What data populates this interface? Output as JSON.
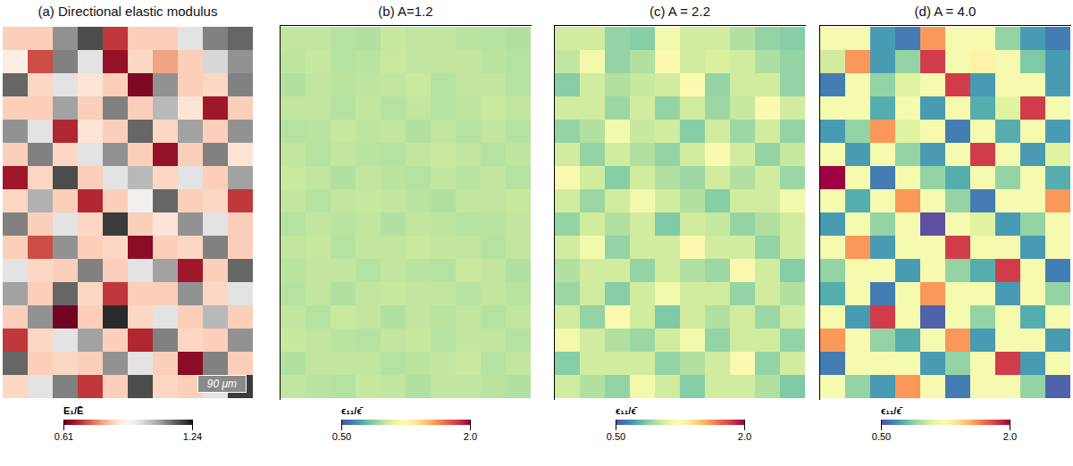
{
  "chart_data": [
    {
      "type": "heatmap",
      "title": "(a) Directional elastic modulus",
      "color": "RdGy",
      "scale_bar": "90 μm",
      "colorbar": {
        "label": "E₁/Ē",
        "range": [
          0.61,
          1.24
        ],
        "ticks": [
          0.61,
          1.24
        ]
      },
      "cells": [
        [
          0.85,
          0.85,
          1.1,
          1.18,
          0.7,
          0.85,
          0.85,
          0.98,
          1.12,
          1.15
        ],
        [
          0.9,
          0.72,
          1.12,
          0.98,
          0.65,
          0.86,
          0.8,
          0.85,
          1.0,
          1.1
        ],
        [
          1.15,
          0.86,
          0.98,
          0.88,
          0.85,
          0.63,
          1.1,
          0.85,
          0.86,
          1.12
        ],
        [
          0.85,
          0.85,
          1.08,
          0.85,
          1.12,
          0.85,
          1.05,
          0.88,
          0.66,
          0.85
        ],
        [
          1.1,
          0.98,
          0.68,
          0.88,
          0.85,
          1.15,
          0.86,
          1.08,
          0.85,
          1.1
        ],
        [
          0.85,
          1.12,
          0.86,
          0.98,
          1.1,
          0.85,
          0.65,
          0.85,
          1.12,
          0.88
        ],
        [
          0.66,
          0.86,
          1.18,
          0.85,
          0.98,
          1.05,
          0.86,
          0.98,
          0.85,
          1.08
        ],
        [
          0.86,
          1.06,
          0.85,
          0.68,
          0.85,
          0.95,
          1.15,
          0.85,
          0.86,
          0.7
        ],
        [
          1.12,
          0.85,
          0.98,
          0.86,
          1.2,
          0.85,
          0.88,
          1.1,
          0.98,
          0.85
        ],
        [
          0.85,
          0.72,
          1.1,
          0.85,
          0.86,
          0.64,
          0.85,
          0.86,
          1.12,
          0.85
        ],
        [
          0.98,
          0.86,
          0.85,
          1.12,
          0.85,
          0.98,
          1.08,
          0.66,
          0.85,
          1.15
        ],
        [
          1.08,
          0.85,
          1.15,
          0.86,
          0.7,
          0.85,
          0.85,
          1.1,
          0.86,
          0.98
        ],
        [
          0.85,
          1.1,
          0.62,
          0.85,
          1.22,
          0.86,
          0.98,
          0.85,
          1.05,
          0.85
        ],
        [
          0.7,
          0.86,
          0.98,
          1.08,
          0.85,
          0.68,
          1.12,
          0.86,
          0.85,
          1.1
        ],
        [
          1.15,
          0.85,
          0.86,
          0.85,
          1.1,
          0.98,
          0.85,
          0.64,
          1.12,
          0.85
        ],
        [
          0.86,
          0.98,
          1.12,
          0.7,
          0.85,
          1.18,
          0.86,
          0.85,
          0.98,
          1.2
        ]
      ]
    },
    {
      "type": "heatmap",
      "title": "(b) A=1.2",
      "color": "Spectral",
      "colorbar": {
        "label": "ϵ₁₁/ϵ̄",
        "range": [
          0.5,
          2.0
        ],
        "ticks": [
          {
            "value": 0.5,
            "label": "0.50"
          },
          {
            "value": 2.0,
            "label": "2.0"
          }
        ]
      },
      "cells": [
        [
          1.01,
          1.01,
          0.98,
          0.97,
          1.02,
          1.01,
          1.01,
          0.99,
          0.98,
          0.97
        ],
        [
          1.0,
          1.02,
          0.98,
          0.99,
          1.03,
          1.01,
          1.01,
          1.01,
          0.99,
          0.98
        ],
        [
          0.97,
          1.01,
          0.99,
          1.0,
          1.01,
          1.03,
          0.98,
          1.01,
          1.01,
          0.98
        ],
        [
          1.01,
          1.01,
          0.98,
          1.01,
          0.98,
          1.01,
          0.98,
          1.0,
          1.03,
          1.01
        ],
        [
          0.98,
          0.99,
          1.02,
          1.0,
          1.01,
          0.97,
          1.01,
          0.98,
          1.01,
          0.98
        ],
        [
          1.01,
          0.98,
          1.01,
          0.99,
          0.98,
          1.01,
          1.03,
          1.01,
          0.98,
          1.0
        ],
        [
          1.03,
          1.01,
          0.97,
          1.01,
          0.99,
          0.98,
          1.01,
          0.99,
          1.01,
          0.98
        ],
        [
          1.01,
          0.98,
          1.01,
          1.02,
          1.01,
          0.99,
          0.97,
          1.01,
          1.01,
          1.02
        ],
        [
          0.98,
          1.01,
          0.99,
          1.01,
          0.97,
          1.01,
          1.0,
          0.98,
          0.99,
          1.01
        ],
        [
          1.01,
          1.02,
          0.98,
          1.01,
          1.01,
          1.03,
          1.01,
          1.01,
          0.98,
          1.01
        ],
        [
          0.99,
          1.01,
          1.01,
          0.98,
          1.01,
          0.99,
          0.98,
          1.03,
          1.01,
          0.97
        ],
        [
          0.98,
          1.01,
          0.97,
          1.01,
          1.02,
          1.01,
          1.01,
          0.98,
          1.01,
          0.99
        ],
        [
          1.01,
          0.98,
          1.03,
          1.01,
          0.97,
          1.01,
          0.99,
          1.01,
          0.98,
          1.01
        ],
        [
          1.02,
          1.01,
          0.99,
          0.98,
          1.01,
          1.02,
          0.98,
          1.01,
          1.01,
          0.98
        ],
        [
          0.97,
          1.01,
          1.01,
          1.01,
          0.98,
          0.99,
          1.01,
          1.03,
          0.98,
          1.01
        ],
        [
          1.01,
          0.99,
          0.98,
          1.02,
          1.01,
          0.97,
          1.01,
          1.01,
          0.99,
          0.97
        ]
      ]
    },
    {
      "type": "heatmap",
      "title": "(c) A = 2.2",
      "color": "Spectral",
      "colorbar": {
        "label": "ϵ₁₁/ϵ̄",
        "range": [
          0.5,
          2.0
        ],
        "ticks": [
          {
            "value": 0.5,
            "label": "0.50"
          },
          {
            "value": 2.0,
            "label": "2.0"
          }
        ]
      },
      "cells": [
        [
          1.05,
          1.05,
          0.9,
          0.87,
          1.18,
          1.05,
          1.05,
          0.97,
          0.9,
          0.87
        ],
        [
          1.01,
          1.18,
          0.9,
          0.97,
          1.25,
          1.05,
          1.08,
          1.05,
          0.96,
          0.9
        ],
        [
          0.87,
          1.05,
          0.97,
          1.02,
          1.05,
          1.25,
          0.9,
          1.05,
          1.05,
          0.9
        ],
        [
          1.05,
          1.05,
          0.92,
          1.05,
          0.9,
          1.05,
          0.92,
          1.02,
          1.25,
          1.05
        ],
        [
          0.9,
          0.97,
          1.18,
          1.02,
          1.05,
          0.87,
          1.05,
          0.92,
          1.05,
          0.9
        ],
        [
          1.05,
          0.9,
          1.05,
          0.97,
          0.9,
          1.05,
          1.25,
          1.05,
          0.9,
          1.02
        ],
        [
          1.25,
          1.05,
          0.87,
          1.05,
          0.97,
          0.92,
          1.05,
          0.97,
          1.05,
          0.92
        ],
        [
          1.05,
          0.92,
          1.05,
          1.18,
          1.05,
          0.97,
          0.87,
          1.05,
          1.05,
          1.18
        ],
        [
          0.9,
          1.05,
          0.97,
          1.05,
          0.85,
          1.05,
          1.02,
          0.9,
          0.97,
          1.05
        ],
        [
          1.05,
          1.18,
          0.9,
          1.05,
          1.05,
          1.25,
          1.05,
          1.05,
          0.9,
          1.05
        ],
        [
          0.97,
          1.05,
          1.05,
          0.9,
          1.05,
          0.97,
          0.92,
          1.25,
          1.05,
          0.87
        ],
        [
          0.92,
          1.05,
          0.87,
          1.05,
          1.18,
          1.05,
          1.05,
          0.9,
          1.05,
          0.97
        ],
        [
          1.05,
          0.9,
          1.25,
          1.05,
          0.85,
          1.05,
          0.97,
          1.05,
          0.92,
          1.05
        ],
        [
          1.18,
          1.05,
          0.97,
          0.92,
          1.05,
          1.18,
          0.9,
          1.05,
          1.05,
          0.9
        ],
        [
          0.87,
          1.05,
          1.05,
          1.05,
          0.9,
          0.97,
          1.05,
          1.25,
          0.9,
          1.05
        ],
        [
          1.05,
          0.97,
          0.9,
          1.18,
          1.05,
          0.87,
          1.05,
          1.05,
          0.97,
          0.85
        ]
      ]
    },
    {
      "type": "heatmap",
      "title": "(d) A = 4.0",
      "color": "Spectral",
      "colorbar": {
        "label": "ϵ₁₁/ϵ̄",
        "range": [
          0.5,
          2.0
        ],
        "ticks": [
          {
            "value": 0.5,
            "label": "0.50"
          },
          {
            "value": 2.0,
            "label": "2.0"
          }
        ]
      },
      "cells": [
        [
          1.2,
          1.2,
          0.7,
          0.62,
          1.6,
          1.2,
          1.2,
          0.9,
          0.7,
          0.62
        ],
        [
          1.05,
          1.6,
          0.7,
          0.9,
          1.85,
          1.2,
          1.3,
          1.2,
          0.85,
          0.7
        ],
        [
          0.62,
          1.2,
          0.9,
          1.1,
          1.2,
          1.85,
          0.7,
          1.2,
          1.2,
          0.7
        ],
        [
          1.2,
          1.2,
          0.75,
          1.2,
          0.7,
          1.2,
          0.75,
          1.1,
          1.85,
          1.2
        ],
        [
          0.7,
          0.9,
          1.6,
          1.1,
          1.2,
          0.62,
          1.2,
          0.75,
          1.2,
          0.7
        ],
        [
          1.2,
          0.7,
          1.2,
          0.9,
          0.7,
          1.2,
          1.85,
          1.2,
          0.7,
          1.1
        ],
        [
          2.0,
          1.2,
          0.62,
          1.2,
          0.9,
          0.75,
          1.2,
          0.9,
          1.2,
          0.75
        ],
        [
          1.2,
          0.75,
          1.2,
          1.6,
          1.2,
          0.9,
          0.62,
          1.2,
          1.2,
          1.6
        ],
        [
          0.7,
          1.2,
          0.9,
          1.2,
          0.5,
          1.2,
          1.1,
          0.7,
          0.9,
          1.2
        ],
        [
          1.2,
          1.6,
          0.7,
          1.2,
          1.2,
          1.85,
          1.2,
          1.2,
          0.7,
          1.2
        ],
        [
          0.9,
          1.2,
          1.2,
          0.7,
          1.2,
          0.9,
          0.75,
          1.85,
          1.2,
          0.62
        ],
        [
          0.75,
          1.2,
          0.62,
          1.2,
          1.6,
          1.2,
          1.2,
          0.7,
          1.2,
          0.9
        ],
        [
          1.2,
          0.7,
          1.85,
          1.2,
          0.55,
          1.2,
          0.9,
          1.2,
          0.75,
          1.2
        ],
        [
          1.6,
          1.2,
          0.9,
          0.75,
          1.2,
          1.6,
          0.7,
          1.2,
          1.2,
          0.7
        ],
        [
          0.62,
          1.2,
          1.2,
          1.2,
          0.7,
          0.9,
          1.2,
          1.85,
          0.7,
          1.2
        ],
        [
          1.2,
          0.9,
          0.7,
          1.6,
          1.2,
          0.62,
          1.2,
          1.2,
          0.9,
          0.55
        ]
      ]
    }
  ]
}
